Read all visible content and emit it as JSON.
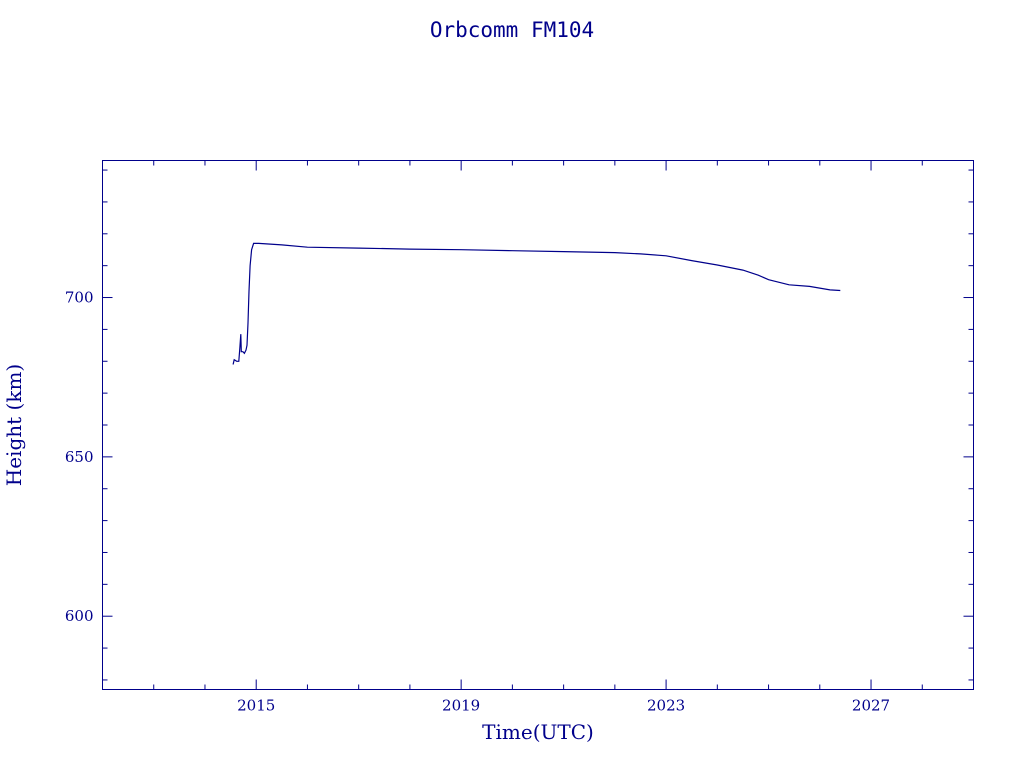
{
  "chart_data": {
    "type": "line",
    "title": "Orbcomm FM104",
    "xlabel": "Time(UTC)",
    "ylabel": "Height (km)",
    "xlim": [
      2012.0,
      2029.0
    ],
    "ylim": [
      577.0,
      743.0
    ],
    "x_ticks": [
      2015,
      2019,
      2023,
      2027
    ],
    "x_tick_labels": [
      "2015",
      "2019",
      "2023",
      "2027"
    ],
    "x_minor_step": 1,
    "y_ticks": [
      600,
      650,
      700
    ],
    "y_tick_labels": [
      "600",
      "650",
      "700"
    ],
    "y_minor_step": 10,
    "grid": false,
    "color": "#00008b",
    "series": [
      {
        "points": [
          [
            2014.55,
            679.0
          ],
          [
            2014.57,
            680.5
          ],
          [
            2014.62,
            680.0
          ],
          [
            2014.66,
            680.0
          ],
          [
            2014.68,
            684.0
          ],
          [
            2014.7,
            688.5
          ],
          [
            2014.71,
            683.0
          ],
          [
            2014.74,
            683.0
          ],
          [
            2014.77,
            682.5
          ],
          [
            2014.8,
            683.5
          ],
          [
            2014.82,
            685.0
          ],
          [
            2014.84,
            692.0
          ],
          [
            2014.86,
            702.0
          ],
          [
            2014.88,
            710.0
          ],
          [
            2014.91,
            715.0
          ],
          [
            2014.95,
            717.0
          ],
          [
            2015.05,
            717.0
          ],
          [
            2015.5,
            716.5
          ],
          [
            2016.0,
            715.8
          ],
          [
            2017.0,
            715.5
          ],
          [
            2018.0,
            715.2
          ],
          [
            2019.0,
            715.0
          ],
          [
            2020.0,
            714.7
          ],
          [
            2021.0,
            714.4
          ],
          [
            2022.0,
            714.1
          ],
          [
            2022.5,
            713.7
          ],
          [
            2023.0,
            713.1
          ],
          [
            2023.5,
            711.6
          ],
          [
            2024.0,
            710.2
          ],
          [
            2024.5,
            708.6
          ],
          [
            2024.8,
            707.0
          ],
          [
            2025.0,
            705.6
          ],
          [
            2025.4,
            704.0
          ],
          [
            2025.8,
            703.5
          ],
          [
            2026.2,
            702.4
          ],
          [
            2026.4,
            702.2
          ]
        ]
      }
    ]
  }
}
